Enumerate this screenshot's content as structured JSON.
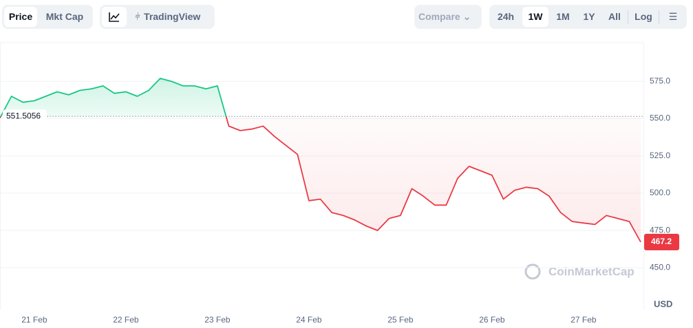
{
  "toolbar": {
    "view_tabs": [
      "Price",
      "Mkt Cap"
    ],
    "tradingview": "TradingView",
    "compare": "Compare",
    "ranges": [
      "24h",
      "1W",
      "1M",
      "1Y",
      "All"
    ],
    "log": "Log"
  },
  "chart_data": {
    "type": "line",
    "categories": [
      null,
      null,
      null,
      "21 Feb",
      null,
      null,
      null,
      null,
      null,
      null,
      null,
      "22 Feb",
      null,
      null,
      null,
      null,
      null,
      null,
      null,
      "23 Feb",
      null,
      null,
      null,
      null,
      null,
      null,
      null,
      "24 Feb",
      null,
      null,
      null,
      null,
      null,
      null,
      null,
      "25 Feb",
      null,
      null,
      null,
      null,
      null,
      null,
      null,
      "26 Feb",
      null,
      null,
      null,
      null,
      null,
      null,
      null,
      "27 Feb",
      null,
      null,
      null,
      null,
      null
    ],
    "values": [
      550.5,
      565,
      561,
      562,
      565,
      568,
      566,
      569,
      570,
      572,
      567,
      568,
      565,
      569,
      577,
      575,
      572,
      572,
      570,
      572,
      545,
      542,
      543,
      545,
      538,
      532,
      526,
      495,
      496,
      487,
      485,
      482,
      478,
      475,
      483,
      485,
      503,
      498,
      492,
      492,
      510,
      518,
      515,
      512,
      496,
      502,
      504,
      503,
      498,
      487,
      481,
      480,
      479,
      485,
      483,
      481,
      467.2
    ],
    "baseline": 551.5056,
    "up_color": "#16c784",
    "down_color": "#ea3943",
    "ylim": [
      422,
      601
    ],
    "yticks": [
      {
        "value": 450,
        "label": "450.0"
      },
      {
        "value": 475,
        "label": "475.0"
      },
      {
        "value": 500,
        "label": "500.0"
      },
      {
        "value": 525,
        "label": "525.0"
      },
      {
        "value": 550,
        "label": "550.0"
      },
      {
        "value": 575,
        "label": "575.0"
      }
    ],
    "currency": "USD",
    "watermark": "CoinMarketCap",
    "grid": true
  }
}
